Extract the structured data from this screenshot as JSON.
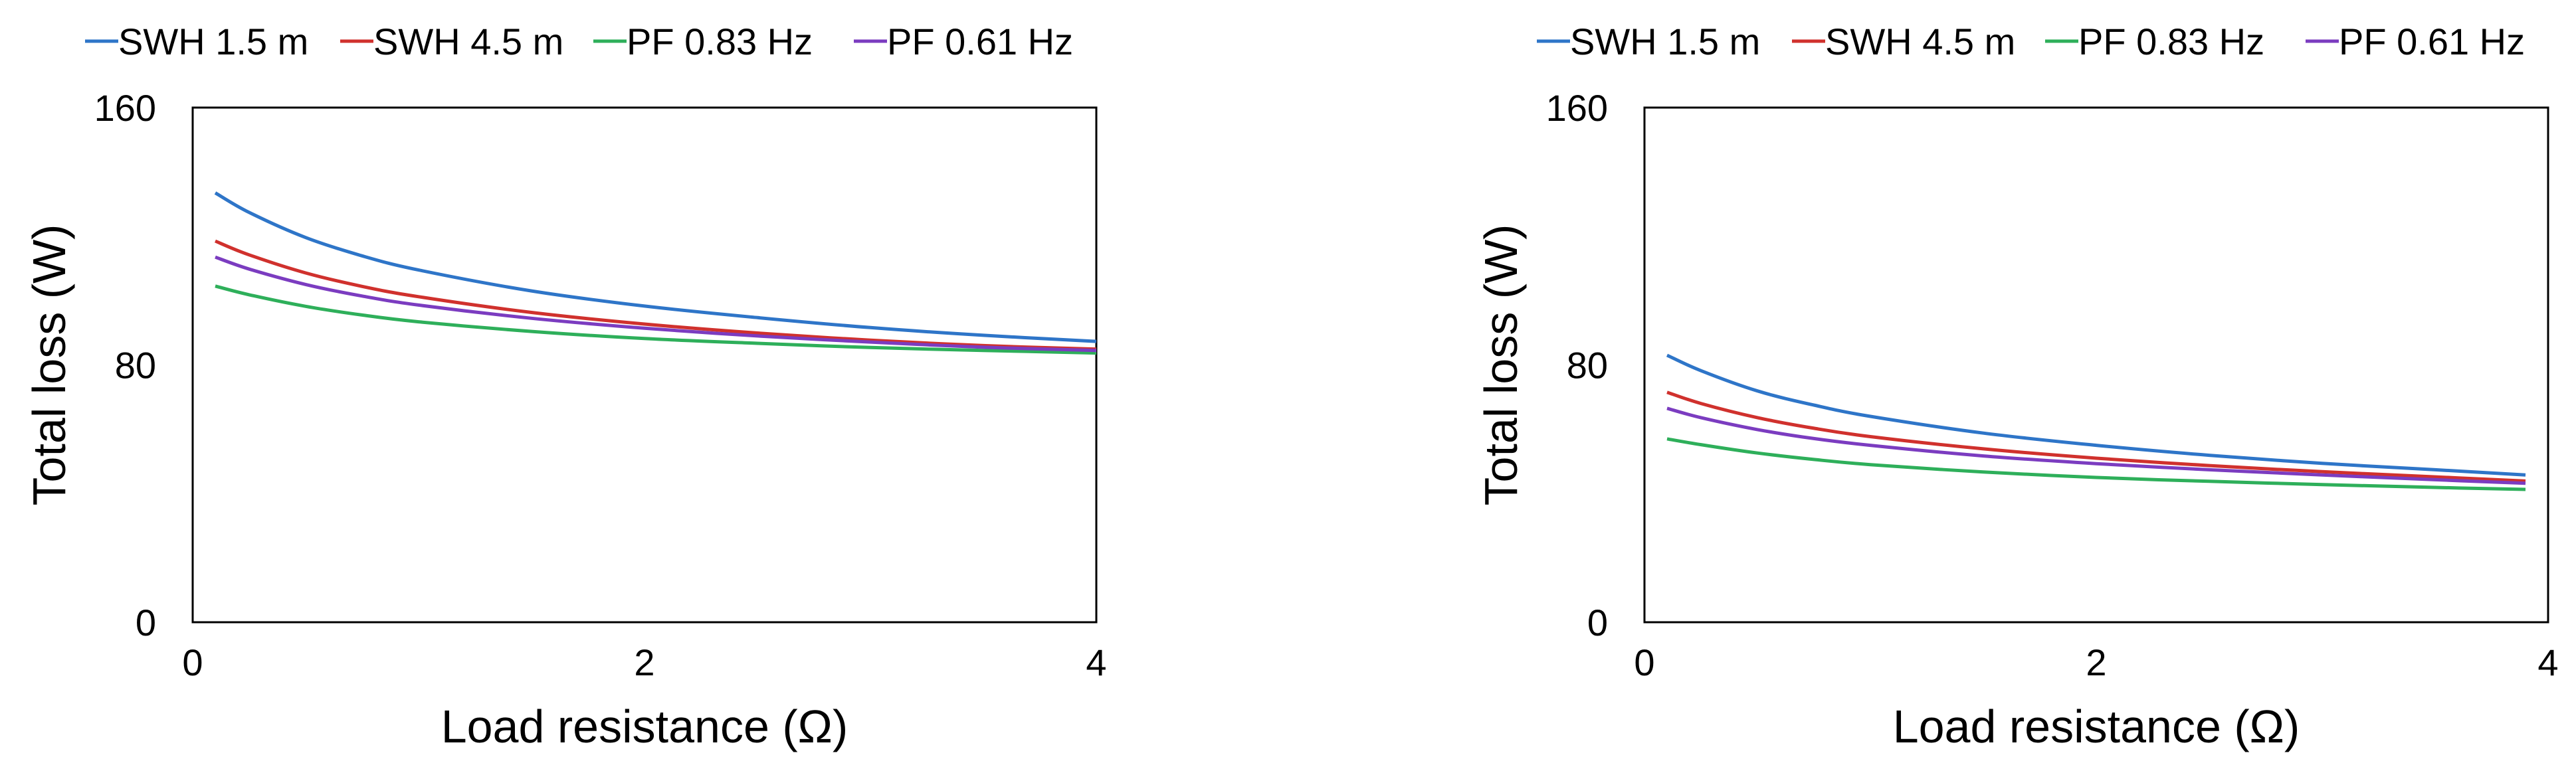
{
  "chart_data": [
    {
      "type": "line",
      "title": "",
      "xlabel": "Load resistance (Ω)",
      "ylabel": "Total loss (W)",
      "xlim": [
        0,
        4
      ],
      "ylim": [
        0,
        160
      ],
      "xticks": [
        "0",
        "2",
        "4"
      ],
      "yticks": [
        "0",
        "80",
        "160"
      ],
      "grid": false,
      "legend_position": "top",
      "x": [
        0.1,
        0.25,
        0.5,
        0.75,
        1.0,
        1.5,
        2.0,
        2.5,
        3.0,
        3.5,
        4.0
      ],
      "series": [
        {
          "name": "SWH 1.5 m",
          "color": "#2E75C8",
          "values": [
            133.5,
            127.4,
            119.6,
            113.9,
            109.5,
            103.0,
            98.3,
            94.7,
            91.6,
            89.2,
            87.3
          ]
        },
        {
          "name": "SWH 4.5 m",
          "color": "#D0312D",
          "values": [
            118.5,
            114.2,
            108.6,
            104.4,
            101.2,
            96.3,
            92.7,
            89.9,
            87.7,
            86.0,
            84.9
          ]
        },
        {
          "name": "PF 0.83 Hz",
          "color": "#2EAF5A",
          "values": [
            104.5,
            101.8,
            98.2,
            95.5,
            93.4,
            90.4,
            88.2,
            86.7,
            85.4,
            84.5,
            83.7
          ]
        },
        {
          "name": "PF 0.61 Hz",
          "color": "#7B3CC0",
          "values": [
            113.5,
            109.8,
            105.0,
            101.4,
            98.6,
            94.5,
            91.4,
            89.0,
            87.1,
            85.5,
            84.5
          ]
        }
      ]
    },
    {
      "type": "line",
      "title": "",
      "xlabel": "Load resistance (Ω)",
      "ylabel": "Total loss (W)",
      "xlim": [
        0,
        4
      ],
      "ylim": [
        0,
        160
      ],
      "xticks": [
        "0",
        "2",
        "4"
      ],
      "yticks": [
        "0",
        "80",
        "160"
      ],
      "grid": false,
      "legend_position": "top",
      "x": [
        0.1,
        0.25,
        0.5,
        0.75,
        1.0,
        1.5,
        2.0,
        2.5,
        3.0,
        3.5,
        3.9
      ],
      "series": [
        {
          "name": "SWH 1.5 m",
          "color": "#2E75C8",
          "values": [
            83.0,
            78.2,
            71.9,
            67.5,
            64.0,
            58.8,
            55.0,
            51.9,
            49.4,
            47.4,
            45.8
          ]
        },
        {
          "name": "SWH 4.5 m",
          "color": "#D0312D",
          "values": [
            71.5,
            68.0,
            63.6,
            60.3,
            57.7,
            53.9,
            51.0,
            48.7,
            46.8,
            45.2,
            43.9
          ]
        },
        {
          "name": "PF 0.83 Hz",
          "color": "#2EAF5A",
          "values": [
            57.0,
            55.2,
            52.6,
            50.6,
            49.0,
            46.7,
            45.0,
            43.8,
            42.8,
            41.9,
            41.3
          ]
        },
        {
          "name": "PF 0.61 Hz",
          "color": "#7B3CC0",
          "values": [
            66.5,
            63.6,
            59.9,
            57.1,
            55.0,
            51.7,
            49.3,
            47.4,
            45.8,
            44.3,
            43.2
          ]
        }
      ]
    }
  ]
}
